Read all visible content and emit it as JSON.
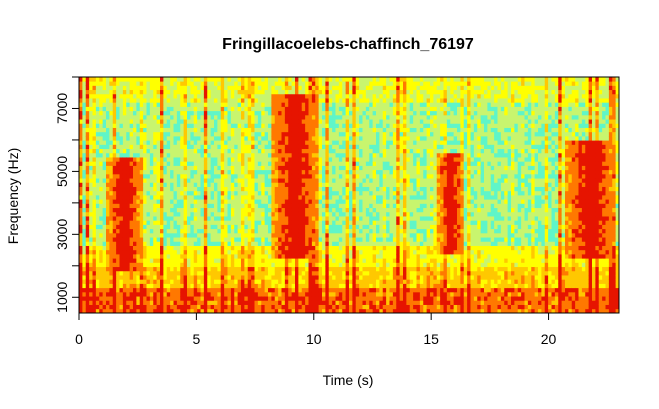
{
  "chart_data": {
    "type": "heatmap",
    "title": "Fringillacoelebs-chaffinch_76197",
    "xlabel": "Time (s)",
    "ylabel": "Frequency (Hz)",
    "xlim": [
      0,
      23
    ],
    "ylim": [
      500,
      8000
    ],
    "x_ticks": [
      0,
      5,
      10,
      15,
      20
    ],
    "x_tick_labels": [
      "0",
      "5",
      "10",
      "15",
      "20"
    ],
    "y_ticks": [
      1000,
      2000,
      3000,
      4000,
      5000,
      6000,
      7000,
      8000
    ],
    "y_tick_labels": [
      "1000",
      "",
      "3000",
      "",
      "5000",
      "",
      "7000",
      ""
    ],
    "color_scale": [
      "#5ff5c8",
      "#c8f56e",
      "#ffff00",
      "#ffc800",
      "#ff7800",
      "#e61400"
    ],
    "song_phrases": [
      {
        "start": 1.2,
        "end": 2.7,
        "low_hz": 1800,
        "high_hz": 5500
      },
      {
        "start": 8.2,
        "end": 10.2,
        "low_hz": 2200,
        "high_hz": 7500
      },
      {
        "start": 15.3,
        "end": 16.4,
        "low_hz": 2400,
        "high_hz": 5600
      },
      {
        "start": 20.7,
        "end": 22.9,
        "low_hz": 2200,
        "high_hz": 6000
      }
    ]
  }
}
